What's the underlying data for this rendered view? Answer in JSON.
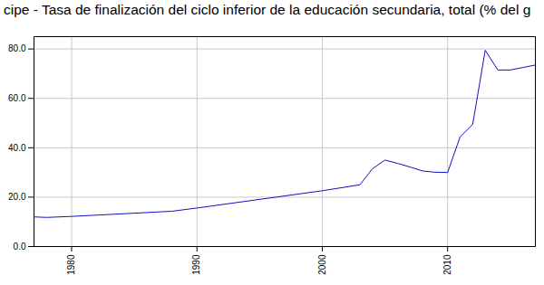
{
  "chart_data": {
    "type": "line",
    "title": "cipe - Tasa de finalización del ciclo inferior de la educación secundaria, total (% del g",
    "x": [
      1977,
      1978,
      1980,
      1988,
      1990,
      2000,
      2003,
      2004,
      2005,
      2006,
      2007,
      2008,
      2009,
      2010,
      2011,
      2012,
      2013,
      2014,
      2015,
      2016,
      2017
    ],
    "values": [
      12.0,
      11.8,
      12.2,
      14.3,
      15.6,
      22.6,
      25.0,
      31.5,
      35.0,
      33.7,
      32.2,
      30.6,
      30.1,
      30.0,
      44.5,
      49.5,
      79.5,
      71.5,
      71.5,
      72.5,
      73.5
    ],
    "color": "#1010c8",
    "xlim": [
      1977,
      2017
    ],
    "xticks": [
      1980,
      1990,
      2000,
      2010
    ],
    "ylim": [
      0,
      85
    ],
    "yticks": [
      {
        "value": 0,
        "label": "0.0"
      },
      {
        "value": 20,
        "label": "20.0"
      },
      {
        "value": 40,
        "label": "40.0"
      },
      {
        "value": 60,
        "label": "60.0"
      },
      {
        "value": 80,
        "label": "80.0"
      }
    ],
    "grid": true
  }
}
